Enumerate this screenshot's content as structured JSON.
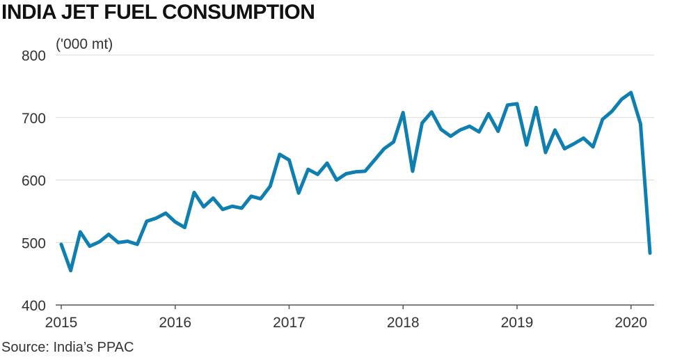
{
  "chart_data": {
    "type": "line",
    "title": "INDIA JET FUEL CONSUMPTION",
    "ylabel": "('000 mt)",
    "xlabel": "",
    "ylim": [
      400,
      800
    ],
    "yticks": [
      400,
      500,
      600,
      700,
      800
    ],
    "xticks": [
      "2015",
      "2016",
      "2017",
      "2018",
      "2019",
      "2020"
    ],
    "grid": true,
    "line_color": "#0e7fb0",
    "x": [
      "2015-01",
      "2015-02",
      "2015-03",
      "2015-04",
      "2015-05",
      "2015-06",
      "2015-07",
      "2015-08",
      "2015-09",
      "2015-10",
      "2015-11",
      "2015-12",
      "2016-01",
      "2016-02",
      "2016-03",
      "2016-04",
      "2016-05",
      "2016-06",
      "2016-07",
      "2016-08",
      "2016-09",
      "2016-10",
      "2016-11",
      "2016-12",
      "2017-01",
      "2017-02",
      "2017-03",
      "2017-04",
      "2017-05",
      "2017-06",
      "2017-07",
      "2017-08",
      "2017-09",
      "2017-10",
      "2017-11",
      "2017-12",
      "2018-01",
      "2018-02",
      "2018-03",
      "2018-04",
      "2018-05",
      "2018-06",
      "2018-07",
      "2018-08",
      "2018-09",
      "2018-10",
      "2018-11",
      "2018-12",
      "2019-01",
      "2019-02",
      "2019-03",
      "2019-04",
      "2019-05",
      "2019-06",
      "2019-07",
      "2019-08",
      "2019-09",
      "2019-10",
      "2019-11",
      "2019-12",
      "2020-01",
      "2020-02",
      "2020-03"
    ],
    "series": [
      {
        "values": [
          497,
          455,
          517,
          494,
          501,
          513,
          500,
          502,
          497,
          534,
          539,
          547,
          533,
          524,
          580,
          557,
          571,
          553,
          558,
          555,
          574,
          570,
          590,
          641,
          632,
          579,
          617,
          609,
          627,
          600,
          610,
          613,
          614,
          632,
          650,
          661,
          708,
          614,
          691,
          709,
          681,
          670,
          680,
          686,
          677,
          706,
          678,
          720,
          722,
          656,
          716,
          644,
          680,
          650,
          658,
          667,
          653,
          697,
          710,
          729,
          740,
          690,
          483
        ]
      }
    ]
  },
  "source": "Source: India’s PPAC"
}
